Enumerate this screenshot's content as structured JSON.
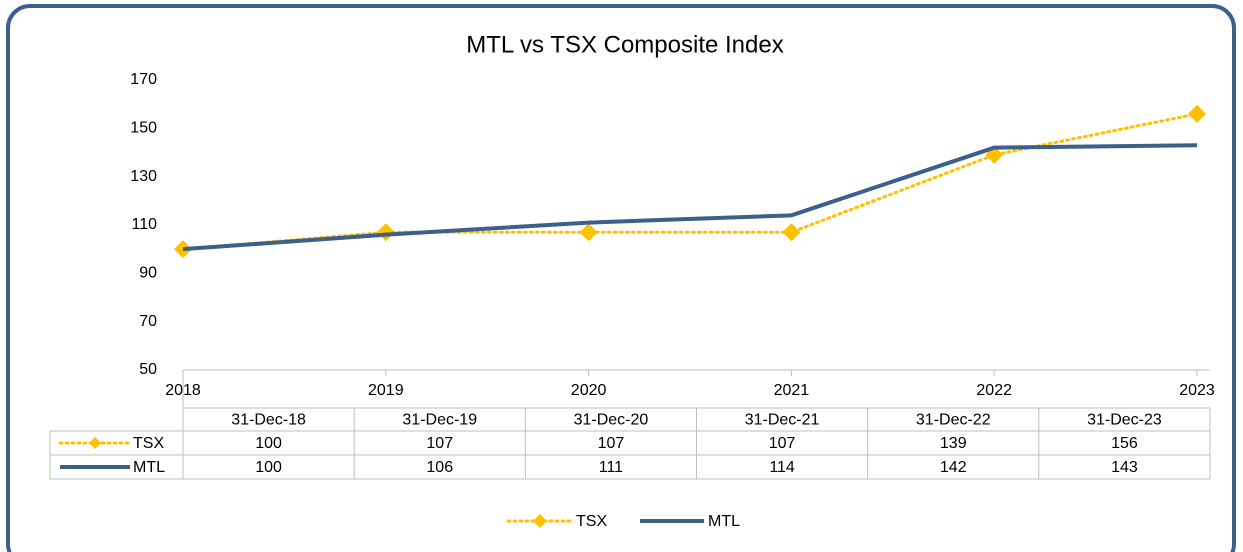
{
  "chart_data": {
    "type": "line",
    "title": "MTL vs TSX Composite Index",
    "x": [
      2018,
      2019,
      2020,
      2021,
      2022,
      2023
    ],
    "xlim": [
      2018,
      2023
    ],
    "xticks": [
      2018,
      2019,
      2020,
      2021,
      2022,
      2023
    ],
    "ylim": [
      50,
      170
    ],
    "yticks": [
      50,
      70,
      90,
      110,
      130,
      150,
      170
    ],
    "categories": [
      "31-Dec-18",
      "31-Dec-19",
      "31-Dec-20",
      "31-Dec-21",
      "31-Dec-22",
      "31-Dec-23"
    ],
    "series": [
      {
        "name": "TSX",
        "color": "#ffc000",
        "values": [
          100,
          107,
          107,
          107,
          139,
          156
        ]
      },
      {
        "name": "MTL",
        "color": "#3c5f8c",
        "values": [
          100,
          106,
          111,
          114,
          142,
          143
        ]
      }
    ],
    "legend": "bottom",
    "grid": false
  }
}
